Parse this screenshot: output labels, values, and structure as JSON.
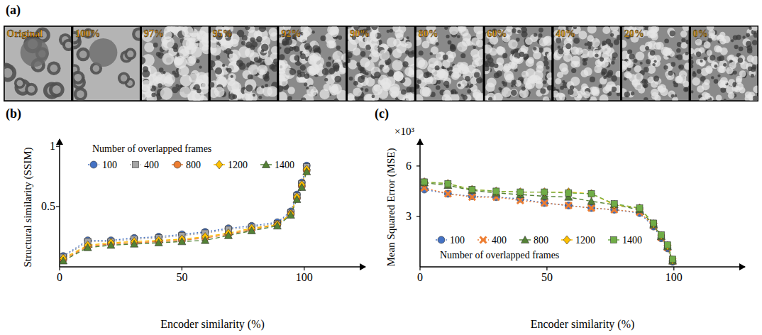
{
  "image_strip": {
    "title": "(a)",
    "frames": [
      "Original",
      "100%",
      "97%",
      "95%",
      "92%",
      "90%",
      "80%",
      "60%",
      "40%",
      "20%",
      "0%"
    ]
  },
  "chart_data": [
    {
      "type": "line",
      "title": "(b)",
      "x_label": "Encoder similarity (%)",
      "y_label": "Structural similarity (SSIM)",
      "legend_title": "Number of overlapped frames",
      "legend": "top-left",
      "x": [
        1.5,
        11.5,
        21,
        30.5,
        40.5,
        50,
        59.5,
        69,
        78.5,
        89,
        94.5,
        97,
        99,
        101
      ],
      "xlim": [
        0,
        125
      ],
      "xticks": [
        0,
        50,
        100
      ],
      "ylim": [
        0,
        1.06
      ],
      "yticks": [
        0.5,
        1
      ],
      "series": [
        {
          "name": "100",
          "color": "#4472c4",
          "marker": "circle",
          "line_style": "dotted",
          "values": [
            0.09,
            0.22,
            0.22,
            0.24,
            0.25,
            0.27,
            0.29,
            0.32,
            0.34,
            0.37,
            0.46,
            0.6,
            0.7,
            0.84
          ]
        },
        {
          "name": "400",
          "color": "#a5a5a5",
          "marker": "square",
          "line_style": "dotted",
          "values": [
            0.08,
            0.21,
            0.21,
            0.23,
            0.24,
            0.26,
            0.28,
            0.31,
            0.33,
            0.36,
            0.45,
            0.59,
            0.69,
            0.83
          ]
        },
        {
          "name": "800",
          "color": "#ed7d31",
          "marker": "circle",
          "line_style": "dashed",
          "values": [
            0.06,
            0.17,
            0.19,
            0.2,
            0.21,
            0.22,
            0.24,
            0.27,
            0.31,
            0.35,
            0.44,
            0.57,
            0.67,
            0.8
          ]
        },
        {
          "name": "1200",
          "color": "#ffc000",
          "marker": "diamond",
          "line_style": "dashed",
          "values": [
            0.07,
            0.18,
            0.2,
            0.21,
            0.22,
            0.23,
            0.25,
            0.28,
            0.32,
            0.35,
            0.44,
            0.58,
            0.68,
            0.81
          ]
        },
        {
          "name": "1400",
          "color": "#548235",
          "marker": "triangle",
          "line_style": "dashed",
          "values": [
            0.05,
            0.16,
            0.18,
            0.19,
            0.2,
            0.21,
            0.22,
            0.26,
            0.3,
            0.34,
            0.43,
            0.56,
            0.66,
            0.79
          ]
        }
      ]
    },
    {
      "type": "line",
      "title": "(c)",
      "x_label": "Encoder similarity (%)",
      "y_label": "Mean Squared Error (MSE)",
      "annotations": [
        "×10³"
      ],
      "legend_title": "Number of overlapped frames",
      "legend": "bottom-left",
      "x": [
        1.7,
        11,
        20.5,
        30,
        39.5,
        49,
        58.5,
        67.5,
        76.5,
        86.5,
        92,
        95,
        97.5,
        99.5
      ],
      "xlim": [
        0,
        128
      ],
      "xticks": [
        0,
        50,
        100
      ],
      "ylim": [
        0,
        7.6
      ],
      "yticks": [
        3,
        6
      ],
      "series": [
        {
          "name": "100",
          "color": "#4472c4",
          "marker": "circle",
          "line_style": "dotted",
          "values": [
            4.6,
            4.35,
            4.2,
            4.15,
            4.05,
            3.8,
            3.65,
            3.5,
            3.4,
            3.2,
            2.4,
            1.7,
            1.1,
            0.3
          ]
        },
        {
          "name": "400",
          "color": "#ed7d31",
          "marker": "cross",
          "line_style": "dotted",
          "values": [
            4.7,
            4.35,
            4.15,
            4.15,
            3.95,
            3.8,
            3.65,
            3.5,
            3.4,
            3.25,
            2.45,
            1.75,
            1.15,
            0.35
          ]
        },
        {
          "name": "800",
          "color": "#548235",
          "marker": "triangle",
          "line_style": "dashed",
          "values": [
            5.0,
            4.85,
            4.55,
            4.4,
            4.3,
            4.2,
            4.15,
            3.9,
            3.7,
            3.4,
            2.5,
            1.8,
            1.2,
            0.35
          ]
        },
        {
          "name": "1200",
          "color": "#ffc000",
          "marker": "diamond",
          "line_style": "dashed",
          "values": [
            5.05,
            4.95,
            4.6,
            4.5,
            4.45,
            4.45,
            4.45,
            4.35,
            3.7,
            3.5,
            2.55,
            1.85,
            1.25,
            0.4
          ]
        },
        {
          "name": "1400",
          "color": "#70ad47",
          "marker": "square",
          "line_style": "dashed",
          "values": [
            5.05,
            4.95,
            4.6,
            4.5,
            4.45,
            4.45,
            4.4,
            4.35,
            3.75,
            3.5,
            2.6,
            1.9,
            1.3,
            0.45
          ]
        }
      ]
    }
  ]
}
